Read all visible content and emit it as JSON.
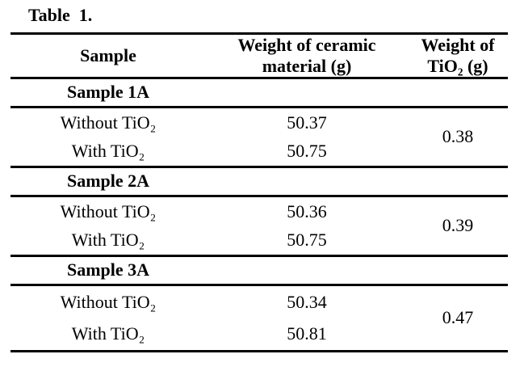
{
  "title": "Table  1.",
  "columns": {
    "sample": "Sample",
    "ceramic": "Weight of ceramic material (g)",
    "tio2": "Weight of TiO₂ (g)"
  },
  "groups": [
    {
      "label": "Sample 1A",
      "tio2": "0.38",
      "rows": [
        {
          "sample": "Without TiO₂",
          "ceramic": "50.37"
        },
        {
          "sample": "With TiO₂",
          "ceramic": "50.75"
        }
      ]
    },
    {
      "label": "Sample 2A",
      "tio2": "0.39",
      "rows": [
        {
          "sample": "Without TiO₂",
          "ceramic": "50.36"
        },
        {
          "sample": "With TiO₂",
          "ceramic": "50.75"
        }
      ]
    },
    {
      "label": "Sample 3A",
      "tio2": "0.47",
      "rows": [
        {
          "sample": "Without TiO₂",
          "ceramic": "50.34"
        },
        {
          "sample": "With TiO₂",
          "ceramic": "50.81"
        }
      ]
    }
  ]
}
